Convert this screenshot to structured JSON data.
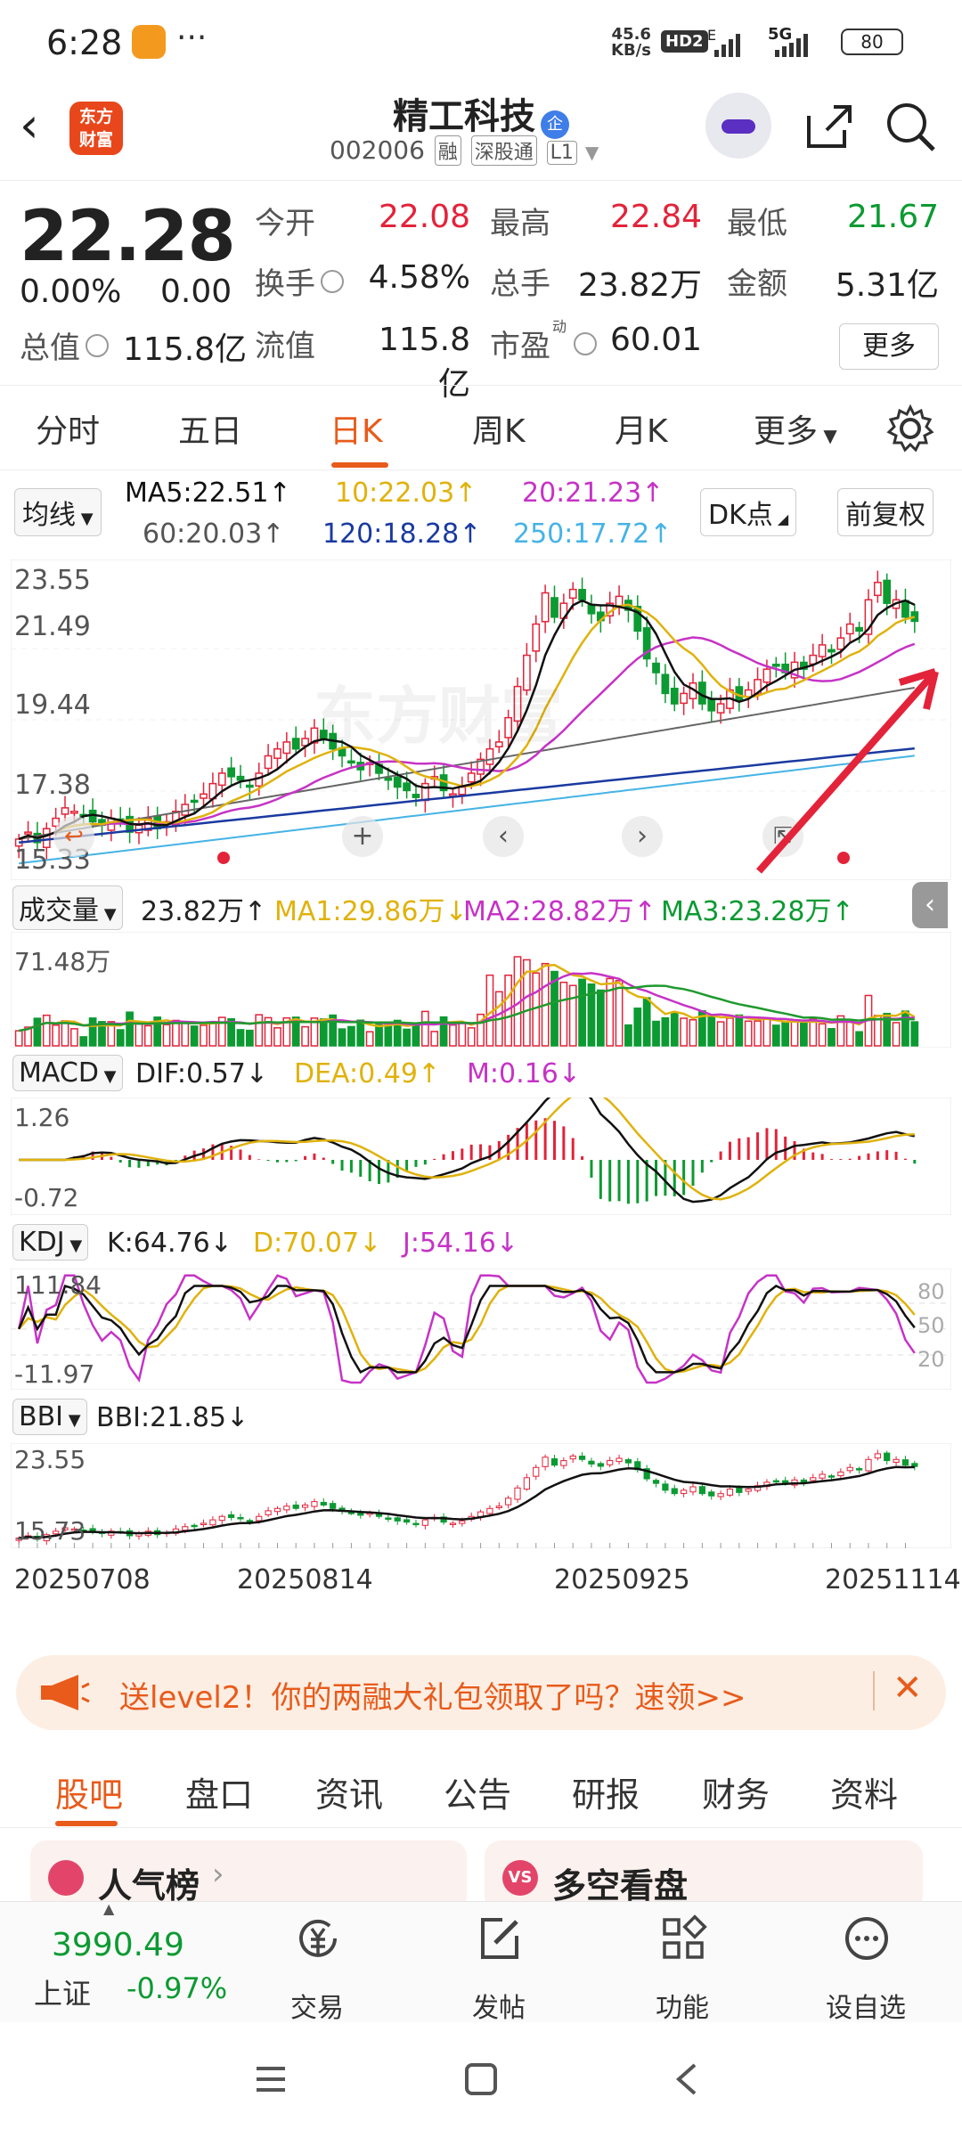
{
  "status": {
    "time": "6:28",
    "net_speed": "45.6",
    "net_unit": "KB/s",
    "hd": "HD2",
    "sig1": "E",
    "sig2": "5G",
    "battery": "80"
  },
  "header": {
    "logo_text": "东方\n财富",
    "title": "精工科技",
    "qi_badge": "企",
    "code": "002006",
    "tags": [
      "融",
      "深股通",
      "L1"
    ]
  },
  "quote": {
    "price": "22.28",
    "change_pct": "0.00%",
    "change": "0.00",
    "open_label": "今开",
    "open": "22.08",
    "high_label": "最高",
    "high": "22.84",
    "low_label": "最低",
    "low": "21.67",
    "turnover_label": "换手",
    "turnover": "4.58%",
    "volume_label": "总手",
    "volume": "23.82万",
    "amount_label": "金额",
    "amount": "5.31亿",
    "mktcap_label": "总值",
    "mktcap": "115.8亿",
    "float_label": "流值",
    "float_cap": "115.8亿",
    "pe_label": "市盈",
    "pe_sup": "动",
    "pe": "60.01",
    "more": "更多"
  },
  "tabs": [
    "分时",
    "五日",
    "日K",
    "周K",
    "月K",
    "更多"
  ],
  "ma": {
    "selector": "均线",
    "ma5": "MA5:22.51↑",
    "ma10": "10:22.03↑",
    "ma20": "20:21.23↑",
    "ma60": "60:20.03↑",
    "ma120": "120:18.28↑",
    "ma250": "250:17.72↑",
    "dk": "DK点",
    "adjust": "前复权"
  },
  "kline_axis": {
    "y1": "23.55",
    "y2": "21.49",
    "y3": "19.44",
    "y4": "17.38",
    "y5": "15.33"
  },
  "volume": {
    "selector": "成交量",
    "value": "23.82万↑",
    "ma1": "MA1:29.86万↓",
    "ma2": "MA2:28.82万↑",
    "ma3": "MA3:23.28万↑",
    "axis_max": "71.48万"
  },
  "macd": {
    "selector": "MACD",
    "dif": "DIF:0.57↓",
    "dea": "DEA:0.49↑",
    "m": "M:0.16↓",
    "axis_top": "1.26",
    "axis_bottom": "-0.72"
  },
  "kdj": {
    "selector": "KDJ",
    "k": "K:64.76↓",
    "d": "D:70.07↓",
    "j": "J:54.16↓",
    "axis_top": "111.84",
    "axis_bottom": "-11.97",
    "lvl80": "80",
    "lvl50": "50",
    "lvl20": "20"
  },
  "bbi": {
    "selector": "BBI",
    "value": "BBI:21.85↓",
    "axis_top": "23.55",
    "axis_bottom": "15.73"
  },
  "dates": [
    "20250708",
    "20250814",
    "20250925",
    "20251114"
  ],
  "watermark": "东方财富",
  "banner": {
    "text": "送level2！你的两融大礼包领取了吗？速领>>"
  },
  "bottom_tabs": [
    "股吧",
    "盘口",
    "资讯",
    "公告",
    "研报",
    "财务",
    "资料"
  ],
  "cards": {
    "left": "人气榜",
    "right": "多空看盘"
  },
  "index": {
    "value": "3990.49",
    "name": "上证",
    "change": "-0.97%"
  },
  "nav": {
    "trade": "交易",
    "post": "发帖",
    "func": "功能",
    "watch": "设自选"
  },
  "colors": {
    "up": "#e3233a",
    "down": "#0c9a32",
    "accent": "#e85b1b",
    "ma5": "#111111",
    "ma10": "#e0b20c",
    "ma20": "#c633c6",
    "ma60": "#666666",
    "ma120": "#1a3aa0",
    "ma250": "#46b3e6"
  },
  "chart_data": {
    "type": "candlestick",
    "closes": [
      16.0,
      16.2,
      15.9,
      16.3,
      16.6,
      16.9,
      16.8,
      16.7,
      16.5,
      16.4,
      16.6,
      16.5,
      16.2,
      16.4,
      16.6,
      16.3,
      16.5,
      16.8,
      17.0,
      17.1,
      17.3,
      17.6,
      17.9,
      17.8,
      17.7,
      17.5,
      17.9,
      18.4,
      18.6,
      18.8,
      18.6,
      18.9,
      19.2,
      18.9,
      18.6,
      18.4,
      18.2,
      18.0,
      18.2,
      17.9,
      17.7,
      17.5,
      17.4,
      17.2,
      17.6,
      17.8,
      17.4,
      17.3,
      17.5,
      17.9,
      18.3,
      18.6,
      18.8,
      19.5,
      20.4,
      21.3,
      22.2,
      23.1,
      22.4,
      22.8,
      23.2,
      22.9,
      22.5,
      22.3,
      22.8,
      23.0,
      22.6,
      22.0,
      21.2,
      20.8,
      20.2,
      19.9,
      20.2,
      20.5,
      19.9,
      19.7,
      19.9,
      20.3,
      20.0,
      20.3,
      20.6,
      20.9,
      21.0,
      20.8,
      21.1,
      20.9,
      21.3,
      21.6,
      21.4,
      21.8,
      22.2,
      22.0,
      22.9,
      23.4,
      22.8,
      22.9,
      22.4,
      22.28
    ]
  }
}
